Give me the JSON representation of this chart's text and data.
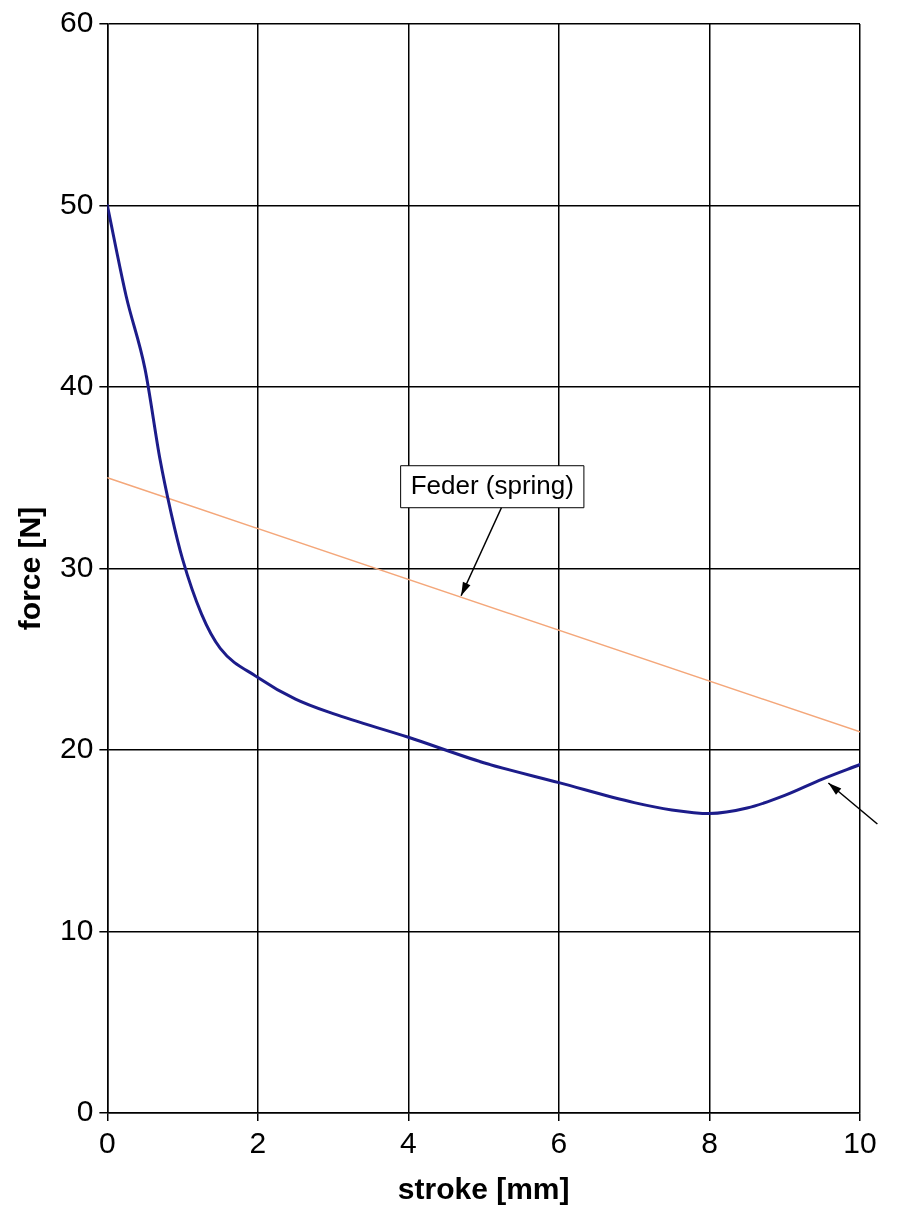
{
  "chart_data": {
    "type": "line",
    "xlabel": "stroke [mm]",
    "ylabel": "force [N]",
    "xlim": [
      0,
      10
    ],
    "xticks": [
      0,
      2,
      4,
      6,
      8,
      10
    ],
    "ylim": [
      0,
      60
    ],
    "yticks": [
      0,
      10,
      20,
      30,
      40,
      50,
      60
    ],
    "grid": true,
    "legend": false,
    "marker": "none",
    "line_style": "solid",
    "series": [
      {
        "color": "#1c1c8a",
        "x": [
          0,
          0.25,
          0.5,
          0.7,
          0.85,
          1,
          1.25,
          1.5,
          2,
          2.5,
          3,
          4,
          5,
          6,
          7,
          7.5,
          8,
          8.5,
          9,
          9.5,
          10
        ],
        "values": [
          50,
          45,
          41,
          36,
          33,
          30.5,
          27.5,
          25.6,
          24,
          22.8,
          22,
          20.7,
          19.3,
          18.2,
          17.1,
          16.7,
          16.5,
          16.8,
          17.5,
          18.4,
          19.2
        ]
      },
      {
        "color": "#f4a77a",
        "x": [
          0,
          10
        ],
        "values": [
          35,
          21
        ]
      }
    ],
    "annotations": [
      {
        "text": "Feder (spring)",
        "x": 4.7,
        "y": 28.5
      }
    ]
  }
}
